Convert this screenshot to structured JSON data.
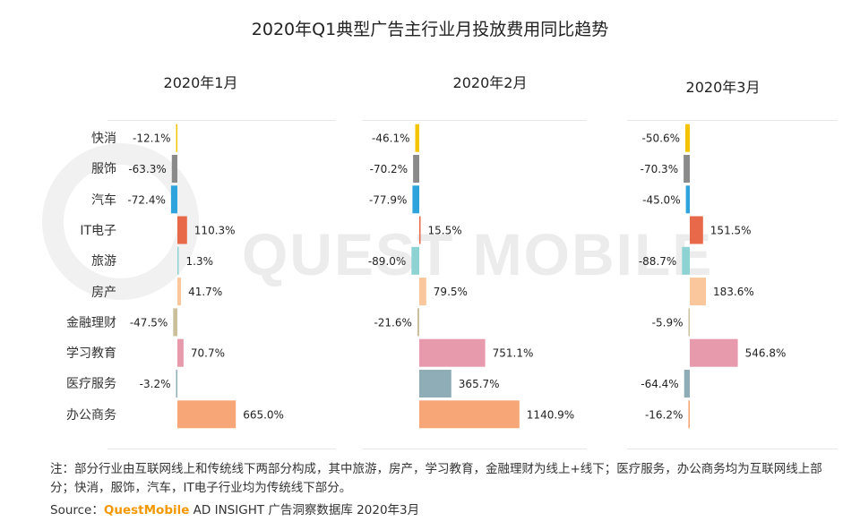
{
  "title": "2020年Q1典型广告主行业月投放费用同比趋势",
  "watermark": "QUEST MOBILE",
  "note": "注：部分行业由互联网线上和传统线下两部分构成，其中旅游，房产，学习教育，金融理财为线上+线下；医疗服务，办公商务均为互联网线上部分；快消，服饰，汽车，IT电子行业均为传统线下部分。",
  "source": {
    "prefix": "Source：",
    "brand": "QuestMobile",
    "suffix": " AD INSIGHT 广告洞察数据库 2020年3月"
  },
  "chart_data": {
    "type": "bar",
    "orientation": "horizontal",
    "unit": "%",
    "categories": [
      "快消",
      "服饰",
      "汽车",
      "IT电子",
      "旅游",
      "房产",
      "金融理财",
      "学习教育",
      "医疗服务",
      "办公商务"
    ],
    "colors": [
      "#f5c400",
      "#8a8a8a",
      "#2ea3dc",
      "#e8694a",
      "#8ed3d3",
      "#f9c79b",
      "#cbbf9c",
      "#e89aad",
      "#8fadb6",
      "#f7a677"
    ],
    "panels": [
      {
        "title": "2020年1月",
        "values": [
          -12.1,
          -63.3,
          -72.4,
          110.3,
          1.3,
          41.7,
          -47.5,
          70.7,
          -3.2,
          665.0
        ],
        "labels": [
          "-12.1%",
          "-63.3%",
          "-72.4%",
          "110.3%",
          "1.3%",
          "41.7%",
          "-47.5%",
          "70.7%",
          "-3.2%",
          "665.0%"
        ]
      },
      {
        "title": "2020年2月",
        "values": [
          -46.1,
          -70.2,
          -77.9,
          15.5,
          -89.0,
          79.5,
          -21.6,
          751.1,
          365.7,
          1140.9
        ],
        "labels": [
          "-46.1%",
          "-70.2%",
          "-77.9%",
          "15.5%",
          "-89.0%",
          "79.5%",
          "-21.6%",
          "751.1%",
          "365.7%",
          "1140.9%"
        ]
      },
      {
        "title": "2020年3月",
        "values": [
          -50.6,
          -70.3,
          -45.0,
          151.5,
          -88.7,
          183.6,
          -5.9,
          546.8,
          -64.4,
          -16.2
        ],
        "labels": [
          "-50.6%",
          "-70.3%",
          "-45.0%",
          "151.5%",
          "-88.7%",
          "183.6%",
          "-5.9%",
          "546.8%",
          "-64.4%",
          "-16.2%"
        ]
      }
    ]
  }
}
